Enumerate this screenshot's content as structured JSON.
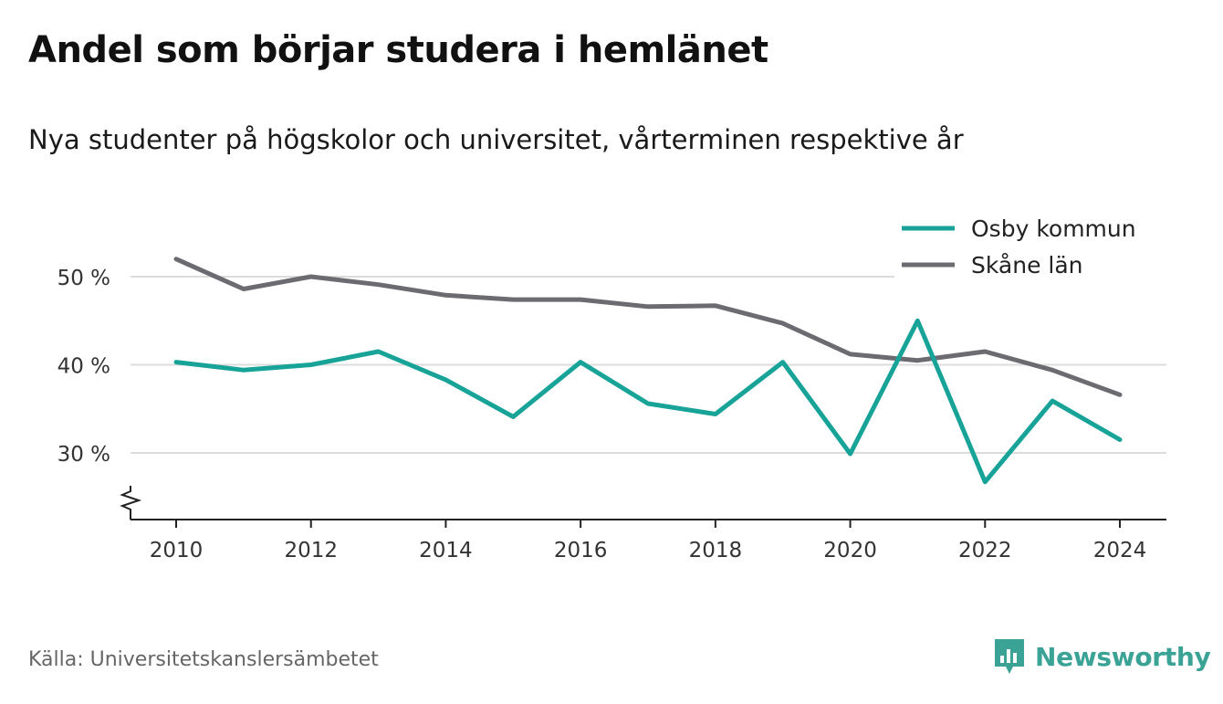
{
  "title": "Andel som börjar studera i hemlänet",
  "subtitle": "Nya studenter på högskolor och universitet, vårterminen respektive år",
  "source": "Källa: Universitetskanslersämbetet",
  "brand": {
    "name": "Newsworthy",
    "icon": "newsworthy-logo-icon",
    "color": "#3aa396"
  },
  "chart_data": {
    "type": "line",
    "x": [
      2010,
      2011,
      2012,
      2013,
      2014,
      2015,
      2016,
      2017,
      2018,
      2019,
      2020,
      2021,
      2022,
      2023,
      2024
    ],
    "x_ticks": [
      "2010",
      "2012",
      "2014",
      "2016",
      "2018",
      "2020",
      "2022",
      "2024"
    ],
    "y_ticks": [
      "30 %",
      "40 %",
      "50 %"
    ],
    "y_tick_values": [
      30,
      40,
      50
    ],
    "ylim": [
      22.5,
      55
    ],
    "y_axis_break": true,
    "grid": true,
    "legend_position": "top-right",
    "series": [
      {
        "name": "Osby kommun",
        "color": "#17a398",
        "values": [
          40.3,
          39.4,
          40.0,
          41.5,
          38.3,
          34.1,
          40.3,
          35.6,
          34.4,
          40.3,
          29.9,
          45.0,
          26.7,
          35.9,
          31.5
        ]
      },
      {
        "name": "Skåne län",
        "color": "#6d6b72",
        "values": [
          52.0,
          48.6,
          50.0,
          49.1,
          47.9,
          47.4,
          47.4,
          46.6,
          46.7,
          44.7,
          41.2,
          40.5,
          41.5,
          39.4,
          36.6
        ]
      }
    ]
  }
}
